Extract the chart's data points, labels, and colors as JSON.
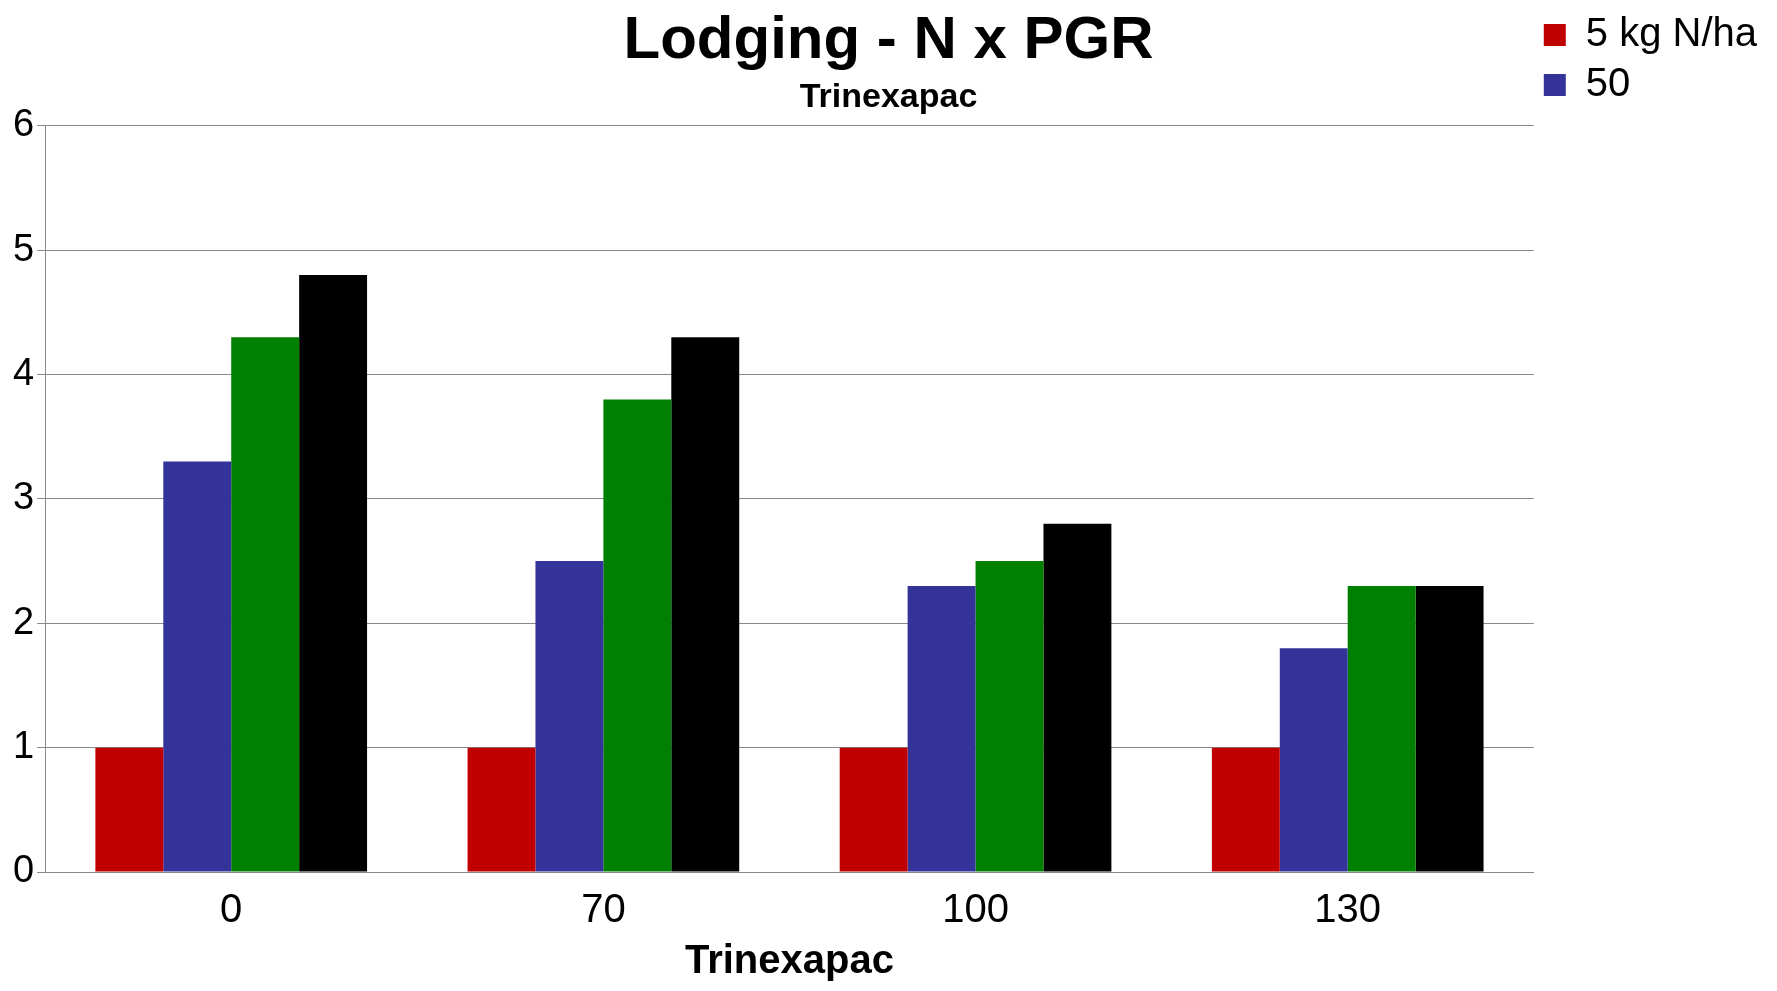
{
  "chart_data": {
    "type": "bar",
    "title": "Lodging - N x PGR",
    "subtitle": "Trinexapac",
    "xlabel": "Trinexapac",
    "categories": [
      "0",
      "70",
      "100",
      "130"
    ],
    "series": [
      {
        "name": "5 kg N/ha",
        "color": "#c00000",
        "values": [
          1,
          1,
          1,
          1
        ]
      },
      {
        "name": "50",
        "color": "#333399",
        "values": [
          3.3,
          2.5,
          2.3,
          1.8
        ]
      },
      {
        "color": "#008000",
        "values": [
          4.3,
          3.8,
          2.5,
          2.3
        ]
      },
      {
        "color": "#000000",
        "values": [
          4.8,
          4.3,
          2.8,
          2.3
        ]
      }
    ],
    "ylim": [
      0,
      6
    ],
    "yticks": [
      0,
      1,
      2,
      3,
      4,
      5,
      6
    ],
    "grid": "y",
    "legend": "top right"
  }
}
